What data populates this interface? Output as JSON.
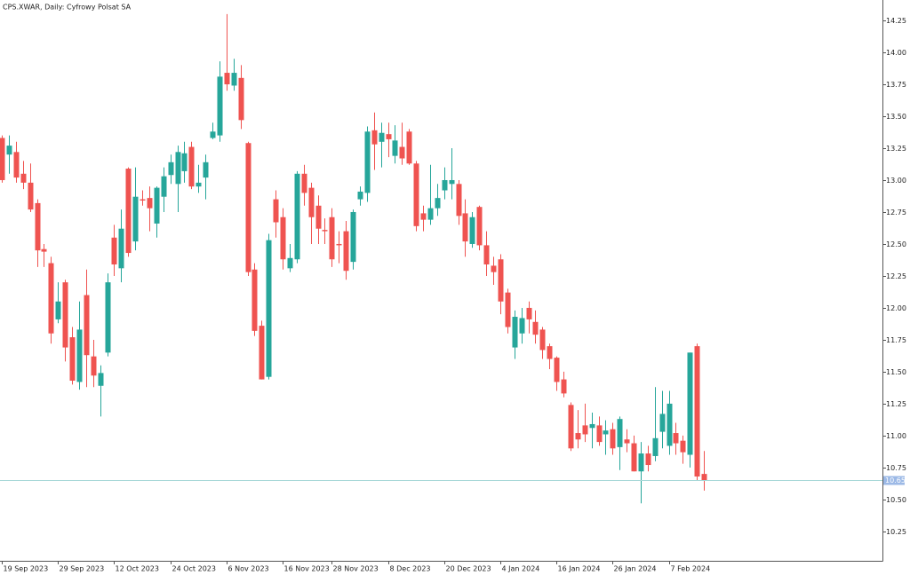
{
  "chart_data": {
    "type": "candlestick",
    "title": "CPS.XWAR, Daily:  Cyfrowy Polsat SA",
    "categories": [
      "19 Sep 2023",
      null,
      null,
      null,
      null,
      null,
      null,
      null,
      "29 Sep 2023",
      null,
      null,
      null,
      null,
      null,
      null,
      null,
      "12 Oct 2023",
      null,
      null,
      null,
      null,
      null,
      null,
      null,
      "24 Oct 2023",
      null,
      null,
      null,
      null,
      null,
      null,
      null,
      "6 Nov 2023",
      null,
      null,
      null,
      null,
      null,
      null,
      null,
      "16 Nov 2023",
      null,
      null,
      null,
      null,
      null,
      null,
      "28 Nov 2023",
      null,
      null,
      null,
      null,
      null,
      null,
      null,
      "8 Dec 2023",
      null,
      null,
      null,
      null,
      null,
      null,
      null,
      "20 Dec 2023",
      null,
      null,
      null,
      null,
      null,
      null,
      null,
      "4 Jan 2024",
      null,
      null,
      null,
      null,
      null,
      null,
      null,
      "16 Jan 2024",
      null,
      null,
      null,
      null,
      null,
      null,
      null,
      "26 Jan 2024",
      null,
      null,
      null,
      null,
      null,
      null,
      null,
      "7 Feb 2024",
      null,
      null,
      null,
      null,
      null
    ],
    "open": [
      13.33,
      13.2,
      13.22,
      13.05,
      12.98,
      12.82,
      12.46,
      12.35,
      11.91,
      12.2,
      11.77,
      11.42,
      12.1,
      11.62,
      11.39,
      11.65,
      12.55,
      12.31,
      13.09,
      12.52,
      12.85,
      12.86,
      12.66,
      12.87,
      13.04,
      12.97,
      13.07,
      13.26,
      12.95,
      13.02,
      13.33,
      13.35,
      13.84,
      13.74,
      13.8,
      13.29,
      12.3,
      11.86,
      11.46,
      12.85,
      12.71,
      12.31,
      12.38,
      13.05,
      12.94,
      12.8,
      12.61,
      12.71,
      12.5,
      12.6,
      12.36,
      12.85,
      12.9,
      13.39,
      13.3,
      13.36,
      13.19,
      13.26,
      13.38,
      13.13,
      12.74,
      12.69,
      12.78,
      12.92,
      12.97,
      12.97,
      12.74,
      12.5,
      12.79,
      12.49,
      12.33,
      12.38,
      12.12,
      11.69,
      11.8,
      12.0,
      11.89,
      11.83,
      11.7,
      11.61,
      11.44,
      11.24,
      11.02,
      11.08,
      11.06,
      11.08,
      11.01,
      11.05,
      10.91,
      10.97,
      10.94,
      10.72,
      10.86,
      10.84,
      11.03,
      10.92,
      11.02,
      10.96,
      10.85,
      11.7,
      10.7
    ],
    "high": [
      13.35,
      13.35,
      13.3,
      13.15,
      13.13,
      12.85,
      12.5,
      12.4,
      12.2,
      12.22,
      11.85,
      12.05,
      12.3,
      11.75,
      11.55,
      12.27,
      12.65,
      12.77,
      13.1,
      13.1,
      12.92,
      12.95,
      12.95,
      13.1,
      13.2,
      13.27,
      13.3,
      13.3,
      13.12,
      13.2,
      13.45,
      13.93,
      14.3,
      13.95,
      13.9,
      13.3,
      12.35,
      11.9,
      12.58,
      12.92,
      12.78,
      12.5,
      13.07,
      13.12,
      12.98,
      12.88,
      12.7,
      12.78,
      12.6,
      12.68,
      12.77,
      12.95,
      13.42,
      13.53,
      13.45,
      13.45,
      13.43,
      13.45,
      13.4,
      13.15,
      12.8,
      13.12,
      12.97,
      13.1,
      13.25,
      13.0,
      12.85,
      12.75,
      12.8,
      12.6,
      12.4,
      12.42,
      12.15,
      11.98,
      12.0,
      12.05,
      11.98,
      11.85,
      11.72,
      11.62,
      11.5,
      11.26,
      11.2,
      11.25,
      11.18,
      11.15,
      11.12,
      11.1,
      11.15,
      11.05,
      11.0,
      10.95,
      10.92,
      11.38,
      11.35,
      11.35,
      11.1,
      11.0,
      11.65,
      11.72,
      10.88
    ],
    "low": [
      12.98,
      13.05,
      12.98,
      12.93,
      12.75,
      12.32,
      12.32,
      11.72,
      11.88,
      11.58,
      11.4,
      11.36,
      11.38,
      11.38,
      11.15,
      11.62,
      12.25,
      12.2,
      12.4,
      12.45,
      12.8,
      12.6,
      12.55,
      12.75,
      12.97,
      12.75,
      12.98,
      12.93,
      12.9,
      12.85,
      13.32,
      13.3,
      13.7,
      13.7,
      13.4,
      12.25,
      11.78,
      11.44,
      11.44,
      12.55,
      12.3,
      12.28,
      12.35,
      12.8,
      12.5,
      12.5,
      12.5,
      12.32,
      12.35,
      12.22,
      12.3,
      12.8,
      12.83,
      13.08,
      13.1,
      13.18,
      13.13,
      13.12,
      13.12,
      12.6,
      12.6,
      12.65,
      12.72,
      12.85,
      12.85,
      12.65,
      12.4,
      12.47,
      12.45,
      12.25,
      12.18,
      11.95,
      11.8,
      11.6,
      11.72,
      11.8,
      11.72,
      11.6,
      11.52,
      11.35,
      11.3,
      10.88,
      10.9,
      10.95,
      10.9,
      10.92,
      10.85,
      10.85,
      10.73,
      10.87,
      10.72,
      10.47,
      10.72,
      10.8,
      10.9,
      10.85,
      10.85,
      10.78,
      10.75,
      10.65,
      10.57
    ],
    "close": [
      13.0,
      13.27,
      13.02,
      12.98,
      12.77,
      12.45,
      12.44,
      11.8,
      12.05,
      11.69,
      11.43,
      11.83,
      11.63,
      11.47,
      11.49,
      12.2,
      12.34,
      12.62,
      12.43,
      12.87,
      12.84,
      12.78,
      12.94,
      13.03,
      13.14,
      13.22,
      13.21,
      12.95,
      12.98,
      13.14,
      13.38,
      13.81,
      13.75,
      13.84,
      13.47,
      12.28,
      11.82,
      11.44,
      12.53,
      12.67,
      12.38,
      12.39,
      13.05,
      12.9,
      12.71,
      12.62,
      12.6,
      12.38,
      12.49,
      12.29,
      12.75,
      12.91,
      13.38,
      13.28,
      13.37,
      13.32,
      13.31,
      13.17,
      13.13,
      12.64,
      12.69,
      12.78,
      12.86,
      13.0,
      13.0,
      12.72,
      12.52,
      12.71,
      12.49,
      12.34,
      12.28,
      12.05,
      11.85,
      11.93,
      11.92,
      11.91,
      11.79,
      11.67,
      11.6,
      11.42,
      11.33,
      10.9,
      10.97,
      11.01,
      11.09,
      10.95,
      11.04,
      10.9,
      11.13,
      10.94,
      10.72,
      10.86,
      10.77,
      10.98,
      11.17,
      11.25,
      10.94,
      10.87,
      11.65,
      10.68,
      10.65
    ],
    "ylim": [
      10.02,
      14.41
    ],
    "yticks": [
      10.25,
      {
        "value": 10.5,
        "label": "10.50"
      },
      10.75,
      {
        "value": 11,
        "label": "11.00"
      },
      11.25,
      {
        "value": 11.5,
        "label": "11.50"
      },
      11.75,
      {
        "value": 12,
        "label": "12.00"
      },
      12.25,
      {
        "value": 12.5,
        "label": "12.50"
      },
      12.75,
      {
        "value": 13,
        "label": "13.00"
      },
      13.25,
      {
        "value": 13.5,
        "label": "13.50"
      },
      13.75,
      {
        "value": 14,
        "label": "14.00"
      },
      14.25
    ],
    "current_price": 10.65,
    "up_color": "#26a69a",
    "down_color": "#ef5350",
    "grid": false
  }
}
